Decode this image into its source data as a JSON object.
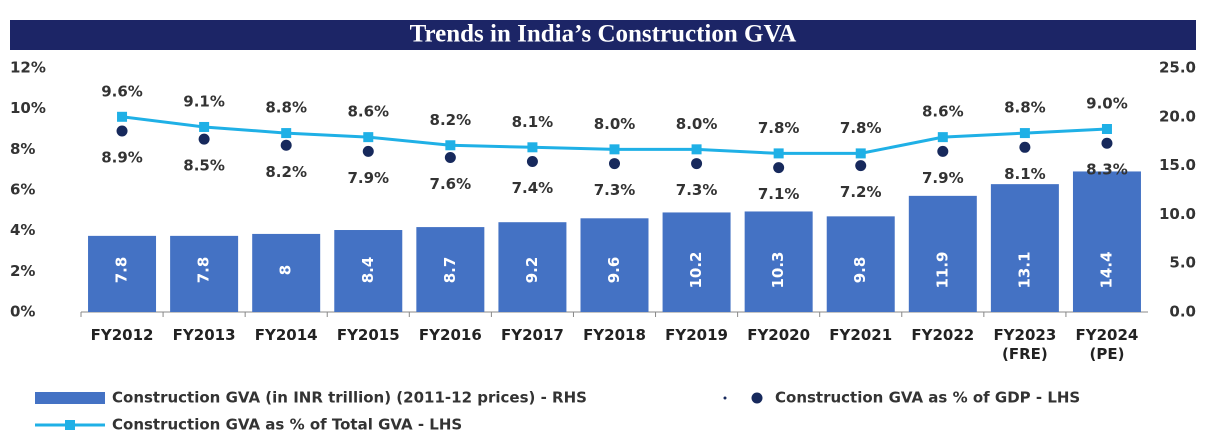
{
  "chart_data": {
    "type": "bar",
    "title": "Trends in India’s Construction GVA",
    "categories": [
      "FY2012",
      "FY2013",
      "FY2014",
      "FY2015",
      "FY2016",
      "FY2017",
      "FY2018",
      "FY2019",
      "FY2020",
      "FY2021",
      "FY2022",
      "FY2023\n(FRE)",
      "FY2024\n(PE)"
    ],
    "series": [
      {
        "name": "Construction GVA (in INR trillion) (2011-12 prices) - RHS",
        "type": "bar",
        "axis": "y2",
        "color": "#4472c4",
        "values": [
          7.8,
          7.8,
          8.0,
          8.4,
          8.7,
          9.2,
          9.6,
          10.2,
          10.3,
          9.8,
          11.9,
          13.1,
          14.4
        ]
      },
      {
        "name": "Construction GVA as % of GDP - LHS",
        "type": "scatter",
        "color": "#17295c",
        "values": [
          8.9,
          8.5,
          8.2,
          7.9,
          7.6,
          7.4,
          7.3,
          7.3,
          7.1,
          7.2,
          7.9,
          8.1,
          8.3
        ],
        "value_labels": [
          "8.9%",
          "8.5%",
          "8.2%",
          "7.9%",
          "7.6%",
          "7.4%",
          "7.3%",
          "7.3%",
          "7.1%",
          "7.2%",
          "7.9%",
          "8.1%",
          "8.3%"
        ]
      },
      {
        "name": "Construction GVA as % of Total GVA - LHS",
        "type": "line",
        "color": "#1fb0e6",
        "values": [
          9.6,
          9.1,
          8.8,
          8.6,
          8.2,
          8.1,
          8.0,
          8.0,
          7.8,
          7.8,
          8.6,
          8.8,
          9.0
        ],
        "value_labels": [
          "9.6%",
          "9.1%",
          "8.8%",
          "8.6%",
          "8.2%",
          "8.1%",
          "8.0%",
          "8.0%",
          "7.8%",
          "7.8%",
          "8.6%",
          "8.8%",
          "9.0%"
        ]
      }
    ],
    "ylim": [
      0,
      12
    ],
    "yticks": [
      {
        "value": 0,
        "label": "0%"
      },
      {
        "value": 2,
        "label": "2%"
      },
      {
        "value": 4,
        "label": "4%"
      },
      {
        "value": 6,
        "label": "6%"
      },
      {
        "value": 8,
        "label": "8%"
      },
      {
        "value": 10,
        "label": "10%"
      },
      {
        "value": 12,
        "label": "12%"
      }
    ],
    "y2lim": [
      0,
      25
    ],
    "y2ticks": [
      {
        "value": 0,
        "label": "0.0"
      },
      {
        "value": 5,
        "label": "5.0"
      },
      {
        "value": 10,
        "label": "10.0"
      },
      {
        "value": 15,
        "label": "15.0"
      },
      {
        "value": 20,
        "label": "20.0"
      },
      {
        "value": 25,
        "label": "25.0"
      }
    ],
    "grid": false
  }
}
